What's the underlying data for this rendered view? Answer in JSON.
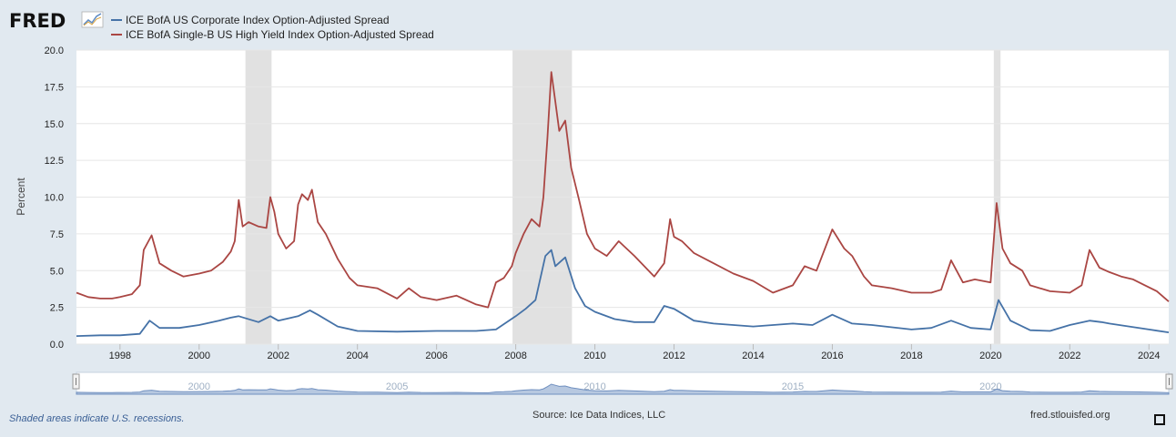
{
  "header": {
    "logo": "FRED"
  },
  "chart_data": {
    "type": "line",
    "title": "",
    "ylabel": "Percent",
    "xlabel": "",
    "ylim": [
      0,
      20
    ],
    "xlim": [
      1996.9,
      2024.5
    ],
    "yticks": [
      "0.0",
      "2.5",
      "5.0",
      "7.5",
      "10.0",
      "12.5",
      "15.0",
      "17.5",
      "20.0"
    ],
    "xticks": [
      "1998",
      "2000",
      "2002",
      "2004",
      "2006",
      "2008",
      "2010",
      "2012",
      "2014",
      "2016",
      "2018",
      "2020",
      "2022",
      "2024"
    ],
    "recessions": [
      [
        2001.17,
        2001.83
      ],
      [
        2007.92,
        2009.42
      ],
      [
        2020.08,
        2020.25
      ]
    ],
    "series": [
      {
        "name": "ICE BofA US Corporate Index Option-Adjusted Spread",
        "color": "#4572a7",
        "x": [
          1996.9,
          1997.5,
          1998.0,
          1998.5,
          1998.75,
          1999.0,
          1999.5,
          2000.0,
          2000.5,
          2000.8,
          2001.0,
          2001.5,
          2001.8,
          2002.0,
          2002.5,
          2002.8,
          2003.0,
          2003.5,
          2004.0,
          2005.0,
          2006.0,
          2007.0,
          2007.5,
          2008.0,
          2008.25,
          2008.5,
          2008.75,
          2008.9,
          2009.0,
          2009.25,
          2009.5,
          2009.75,
          2010.0,
          2010.5,
          2011.0,
          2011.5,
          2011.75,
          2012.0,
          2012.5,
          2013.0,
          2014.0,
          2015.0,
          2015.5,
          2016.0,
          2016.5,
          2017.0,
          2018.0,
          2018.5,
          2019.0,
          2019.5,
          2020.0,
          2020.2,
          2020.5,
          2021.0,
          2021.5,
          2022.0,
          2022.5,
          2022.8,
          2023.0,
          2023.5,
          2024.0,
          2024.5
        ],
        "values": [
          0.55,
          0.6,
          0.6,
          0.7,
          1.6,
          1.1,
          1.1,
          1.3,
          1.6,
          1.8,
          1.9,
          1.5,
          1.9,
          1.6,
          1.9,
          2.3,
          2.0,
          1.2,
          0.9,
          0.85,
          0.9,
          0.9,
          1.0,
          1.9,
          2.4,
          3.0,
          6.0,
          6.4,
          5.3,
          5.9,
          3.8,
          2.6,
          2.2,
          1.7,
          1.5,
          1.5,
          2.6,
          2.4,
          1.6,
          1.4,
          1.2,
          1.4,
          1.3,
          2.0,
          1.4,
          1.3,
          1.0,
          1.1,
          1.6,
          1.1,
          1.0,
          3.0,
          1.6,
          0.95,
          0.9,
          1.3,
          1.6,
          1.5,
          1.4,
          1.2,
          1.0,
          0.8
        ]
      },
      {
        "name": "ICE BofA Single-B US High Yield Index Option-Adjusted Spread",
        "color": "#aa4643",
        "x": [
          1996.9,
          1997.2,
          1997.5,
          1997.8,
          1998.0,
          1998.3,
          1998.5,
          1998.6,
          1998.8,
          1999.0,
          1999.3,
          1999.6,
          2000.0,
          2000.3,
          2000.6,
          2000.8,
          2000.9,
          2001.0,
          2001.1,
          2001.25,
          2001.5,
          2001.7,
          2001.8,
          2001.9,
          2002.0,
          2002.2,
          2002.4,
          2002.5,
          2002.6,
          2002.75,
          2002.85,
          2003.0,
          2003.2,
          2003.5,
          2003.8,
          2004.0,
          2004.5,
          2005.0,
          2005.3,
          2005.6,
          2006.0,
          2006.5,
          2007.0,
          2007.3,
          2007.5,
          2007.7,
          2007.9,
          2008.0,
          2008.2,
          2008.4,
          2008.6,
          2008.7,
          2008.8,
          2008.9,
          2009.0,
          2009.1,
          2009.25,
          2009.4,
          2009.6,
          2009.8,
          2010.0,
          2010.3,
          2010.6,
          2011.0,
          2011.5,
          2011.75,
          2011.9,
          2012.0,
          2012.2,
          2012.5,
          2013.0,
          2013.5,
          2014.0,
          2014.5,
          2015.0,
          2015.3,
          2015.6,
          2016.0,
          2016.3,
          2016.5,
          2016.8,
          2017.0,
          2017.5,
          2018.0,
          2018.5,
          2018.75,
          2019.0,
          2019.3,
          2019.6,
          2020.0,
          2020.15,
          2020.3,
          2020.5,
          2020.8,
          2021.0,
          2021.5,
          2022.0,
          2022.3,
          2022.5,
          2022.75,
          2023.0,
          2023.3,
          2023.6,
          2023.9,
          2024.2,
          2024.5
        ],
        "values": [
          3.5,
          3.2,
          3.1,
          3.1,
          3.2,
          3.4,
          4.0,
          6.4,
          7.4,
          5.5,
          5.0,
          4.6,
          4.8,
          5.0,
          5.6,
          6.3,
          7.0,
          9.8,
          8.0,
          8.3,
          8.0,
          7.9,
          10.0,
          9.0,
          7.5,
          6.5,
          7.0,
          9.5,
          10.2,
          9.8,
          10.5,
          8.3,
          7.5,
          5.8,
          4.5,
          4.0,
          3.8,
          3.1,
          3.8,
          3.2,
          3.0,
          3.3,
          2.7,
          2.5,
          4.2,
          4.5,
          5.3,
          6.2,
          7.5,
          8.5,
          8.0,
          10.0,
          14.0,
          18.5,
          16.5,
          14.5,
          15.2,
          12.0,
          9.8,
          7.5,
          6.5,
          6.0,
          7.0,
          6.0,
          4.6,
          5.5,
          8.5,
          7.3,
          7.0,
          6.2,
          5.5,
          4.8,
          4.3,
          3.5,
          4.0,
          5.3,
          5.0,
          7.8,
          6.5,
          6.0,
          4.6,
          4.0,
          3.8,
          3.5,
          3.5,
          3.7,
          5.7,
          4.2,
          4.4,
          4.2,
          9.6,
          6.5,
          5.5,
          5.0,
          4.0,
          3.6,
          3.5,
          4.0,
          6.4,
          5.2,
          4.9,
          4.6,
          4.4,
          4.0,
          3.6,
          2.9
        ]
      }
    ],
    "navigator": {
      "tick_labels": [
        "2000",
        "2005",
        "2010",
        "2015",
        "2020"
      ]
    }
  },
  "footer": {
    "recession_note": "Shaded areas indicate U.S. recessions.",
    "source": "Source: Ice Data Indices, LLC",
    "site": "fred.stlouisfed.org"
  },
  "colors": {
    "background": "#e1e9f0",
    "plot_bg": "#ffffff",
    "recession": "#e1e1e1",
    "navigator_fill": "#9fb6d6",
    "accent": "#2b4f8a"
  }
}
